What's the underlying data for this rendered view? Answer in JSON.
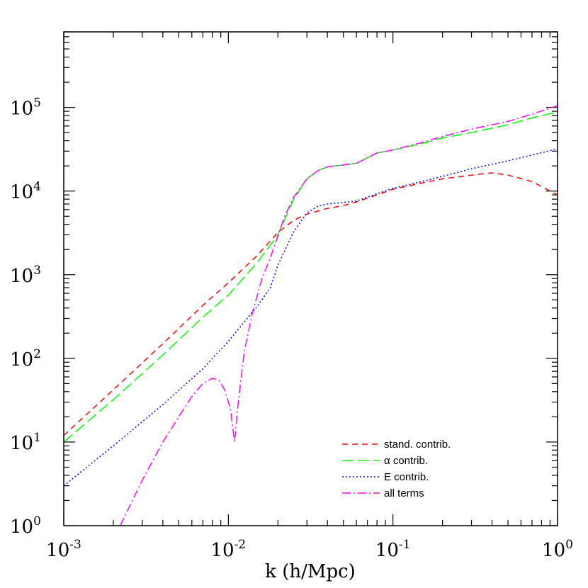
{
  "chart_data": {
    "type": "line",
    "title": "",
    "xlabel": "k (h/Mpc)",
    "ylabel": "",
    "xscale": "log",
    "yscale": "log",
    "xlim": [
      0.001,
      1
    ],
    "ylim": [
      1,
      800000
    ],
    "grid": false,
    "legend_position": "bottom-right",
    "x_ticks": [
      {
        "base": "10",
        "exp": "-3",
        "value": 0.001
      },
      {
        "base": "10",
        "exp": "-2",
        "value": 0.01
      },
      {
        "base": "10",
        "exp": "-1",
        "value": 0.1
      },
      {
        "base": "10",
        "exp": "0",
        "value": 1
      }
    ],
    "y_ticks": [
      {
        "base": "10",
        "exp": "0",
        "value": 1
      },
      {
        "base": "10",
        "exp": "1",
        "value": 10
      },
      {
        "base": "10",
        "exp": "2",
        "value": 100
      },
      {
        "base": "10",
        "exp": "3",
        "value": 1000
      },
      {
        "base": "10",
        "exp": "4",
        "value": 10000
      },
      {
        "base": "10",
        "exp": "5",
        "value": 100000
      }
    ],
    "series": [
      {
        "name": "stand. contrib.",
        "color": "#ff0000",
        "dash": "8,6",
        "points": [
          [
            0.001,
            12
          ],
          [
            0.002,
            42
          ],
          [
            0.004,
            150
          ],
          [
            0.007,
            430
          ],
          [
            0.01,
            800
          ],
          [
            0.015,
            1700
          ],
          [
            0.02,
            3200
          ],
          [
            0.025,
            4500
          ],
          [
            0.03,
            5300
          ],
          [
            0.04,
            6200
          ],
          [
            0.05,
            6700
          ],
          [
            0.06,
            7400
          ],
          [
            0.08,
            9000
          ],
          [
            0.1,
            10500
          ],
          [
            0.15,
            12500
          ],
          [
            0.2,
            14000
          ],
          [
            0.3,
            15500
          ],
          [
            0.4,
            16500
          ],
          [
            0.5,
            15500
          ],
          [
            0.7,
            13000
          ],
          [
            1,
            9000
          ]
        ]
      },
      {
        "name": "α contrib.",
        "color": "#00ff00",
        "dash": "16,6",
        "points": [
          [
            0.001,
            10
          ],
          [
            0.002,
            32
          ],
          [
            0.004,
            110
          ],
          [
            0.007,
            310
          ],
          [
            0.01,
            570
          ],
          [
            0.015,
            1400
          ],
          [
            0.02,
            3000
          ],
          [
            0.025,
            8000
          ],
          [
            0.03,
            14000
          ],
          [
            0.035,
            17500
          ],
          [
            0.04,
            19500
          ],
          [
            0.05,
            20500
          ],
          [
            0.06,
            21500
          ],
          [
            0.07,
            25000
          ],
          [
            0.08,
            28500
          ],
          [
            0.1,
            31000
          ],
          [
            0.15,
            37000
          ],
          [
            0.2,
            43000
          ],
          [
            0.3,
            50000
          ],
          [
            0.5,
            62000
          ],
          [
            0.7,
            75000
          ],
          [
            1,
            88000
          ]
        ]
      },
      {
        "name": "E contrib.",
        "color": "#0000ff",
        "dash": "2,3",
        "points": [
          [
            0.001,
            3
          ],
          [
            0.002,
            9
          ],
          [
            0.004,
            28
          ],
          [
            0.007,
            75
          ],
          [
            0.01,
            160
          ],
          [
            0.015,
            420
          ],
          [
            0.018,
            700
          ],
          [
            0.02,
            1300
          ],
          [
            0.025,
            3300
          ],
          [
            0.03,
            5500
          ],
          [
            0.035,
            6600
          ],
          [
            0.04,
            7000
          ],
          [
            0.05,
            7300
          ],
          [
            0.06,
            7600
          ],
          [
            0.08,
            9300
          ],
          [
            0.1,
            10800
          ],
          [
            0.15,
            13000
          ],
          [
            0.2,
            15000
          ],
          [
            0.3,
            18500
          ],
          [
            0.5,
            23000
          ],
          [
            0.7,
            27000
          ],
          [
            1,
            32000
          ]
        ]
      },
      {
        "name": "all terms",
        "color": "#ff00ff",
        "dash": "12,4,2,4",
        "points": [
          [
            0.0022,
            1
          ],
          [
            0.003,
            3.5
          ],
          [
            0.004,
            10
          ],
          [
            0.005,
            20
          ],
          [
            0.006,
            35
          ],
          [
            0.007,
            50
          ],
          [
            0.008,
            58
          ],
          [
            0.0088,
            54
          ],
          [
            0.0095,
            42
          ],
          [
            0.0103,
            25
          ],
          [
            0.0109,
            10
          ],
          [
            0.0115,
            30
          ],
          [
            0.0125,
            120
          ],
          [
            0.014,
            350
          ],
          [
            0.016,
            900
          ],
          [
            0.018,
            1600
          ],
          [
            0.02,
            2900
          ],
          [
            0.022,
            5000
          ],
          [
            0.025,
            8500
          ],
          [
            0.03,
            14000
          ],
          [
            0.035,
            17500
          ],
          [
            0.04,
            19500
          ],
          [
            0.05,
            20500
          ],
          [
            0.06,
            21500
          ],
          [
            0.07,
            25000
          ],
          [
            0.08,
            28500
          ],
          [
            0.1,
            31000
          ],
          [
            0.15,
            38000
          ],
          [
            0.2,
            45000
          ],
          [
            0.3,
            55000
          ],
          [
            0.5,
            68000
          ],
          [
            0.7,
            83000
          ],
          [
            1,
            105000
          ]
        ]
      }
    ]
  }
}
